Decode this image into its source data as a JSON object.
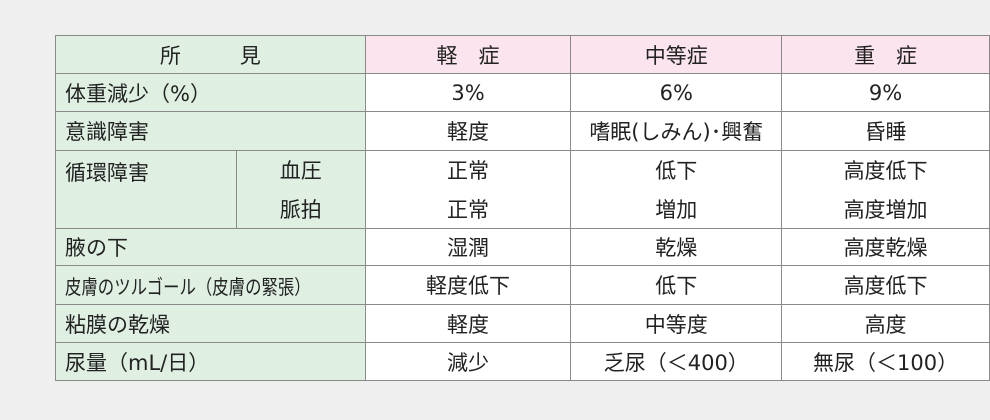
{
  "header": {
    "label": "所　見",
    "columns": [
      "軽　症",
      "中等症",
      "重　症"
    ]
  },
  "rows": [
    {
      "label": "体重減少（%）",
      "values": [
        "3%",
        "6%",
        "9%"
      ]
    },
    {
      "label": "意識障害",
      "values": [
        "軽度",
        "嗜眠(しみん)･興奮",
        "昏睡"
      ]
    },
    {
      "label": "皮膚のツルゴール（皮膚の緊張）",
      "values": [
        "軽度低下",
        "低下",
        "高度低下"
      ]
    },
    {
      "label": "粘膜の乾燥",
      "values": [
        "軽度",
        "中等度",
        "高度"
      ]
    },
    {
      "label": "尿量（mL/日）",
      "values": [
        "減少",
        "乏尿（＜400）",
        "無尿（＜100）"
      ]
    }
  ],
  "circulatory": {
    "label": "循環障害",
    "sub": [
      {
        "label": "血圧",
        "values": [
          "正常",
          "低下",
          "高度低下"
        ]
      },
      {
        "label": "脈拍",
        "values": [
          "正常",
          "増加",
          "高度増加"
        ]
      }
    ]
  },
  "axilla": {
    "label": "腋の下",
    "values": [
      "湿潤",
      "乾燥",
      "高度乾燥"
    ]
  },
  "colors": {
    "label_bg": "#dff0e3",
    "header_bg": "#fbe4ee",
    "page_bg": "#efefef"
  }
}
